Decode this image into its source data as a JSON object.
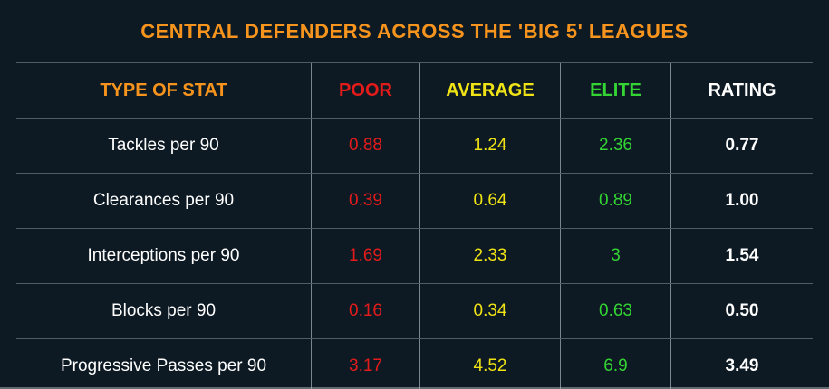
{
  "title": "CENTRAL DEFENDERS ACROSS THE 'BIG 5' LEAGUES",
  "colors": {
    "background": "#0d1a23",
    "title": "#f7941d",
    "poor": "#e31b1b",
    "average": "#f0e315",
    "elite": "#33d433",
    "rating": "#ffffff",
    "divider": "#a5afb4"
  },
  "chart_data": {
    "type": "table",
    "title": "CENTRAL DEFENDERS ACROSS THE 'BIG 5' LEAGUES",
    "columns": [
      "TYPE OF STAT",
      "POOR",
      "AVERAGE",
      "ELITE",
      "RATING"
    ],
    "rows": [
      {
        "stat": "Tackles per 90",
        "poor": "0.88",
        "average": "1.24",
        "elite": "2.36",
        "rating": "0.77"
      },
      {
        "stat": "Clearances per 90",
        "poor": "0.39",
        "average": "0.64",
        "elite": "0.89",
        "rating": "1.00"
      },
      {
        "stat": "Interceptions per 90",
        "poor": "1.69",
        "average": "2.33",
        "elite": "3",
        "rating": "1.54"
      },
      {
        "stat": "Blocks per 90",
        "poor": "0.16",
        "average": "0.34",
        "elite": "0.63",
        "rating": "0.50"
      },
      {
        "stat": "Progressive Passes per 90",
        "poor": "3.17",
        "average": "4.52",
        "elite": "6.9",
        "rating": "3.49"
      }
    ]
  }
}
